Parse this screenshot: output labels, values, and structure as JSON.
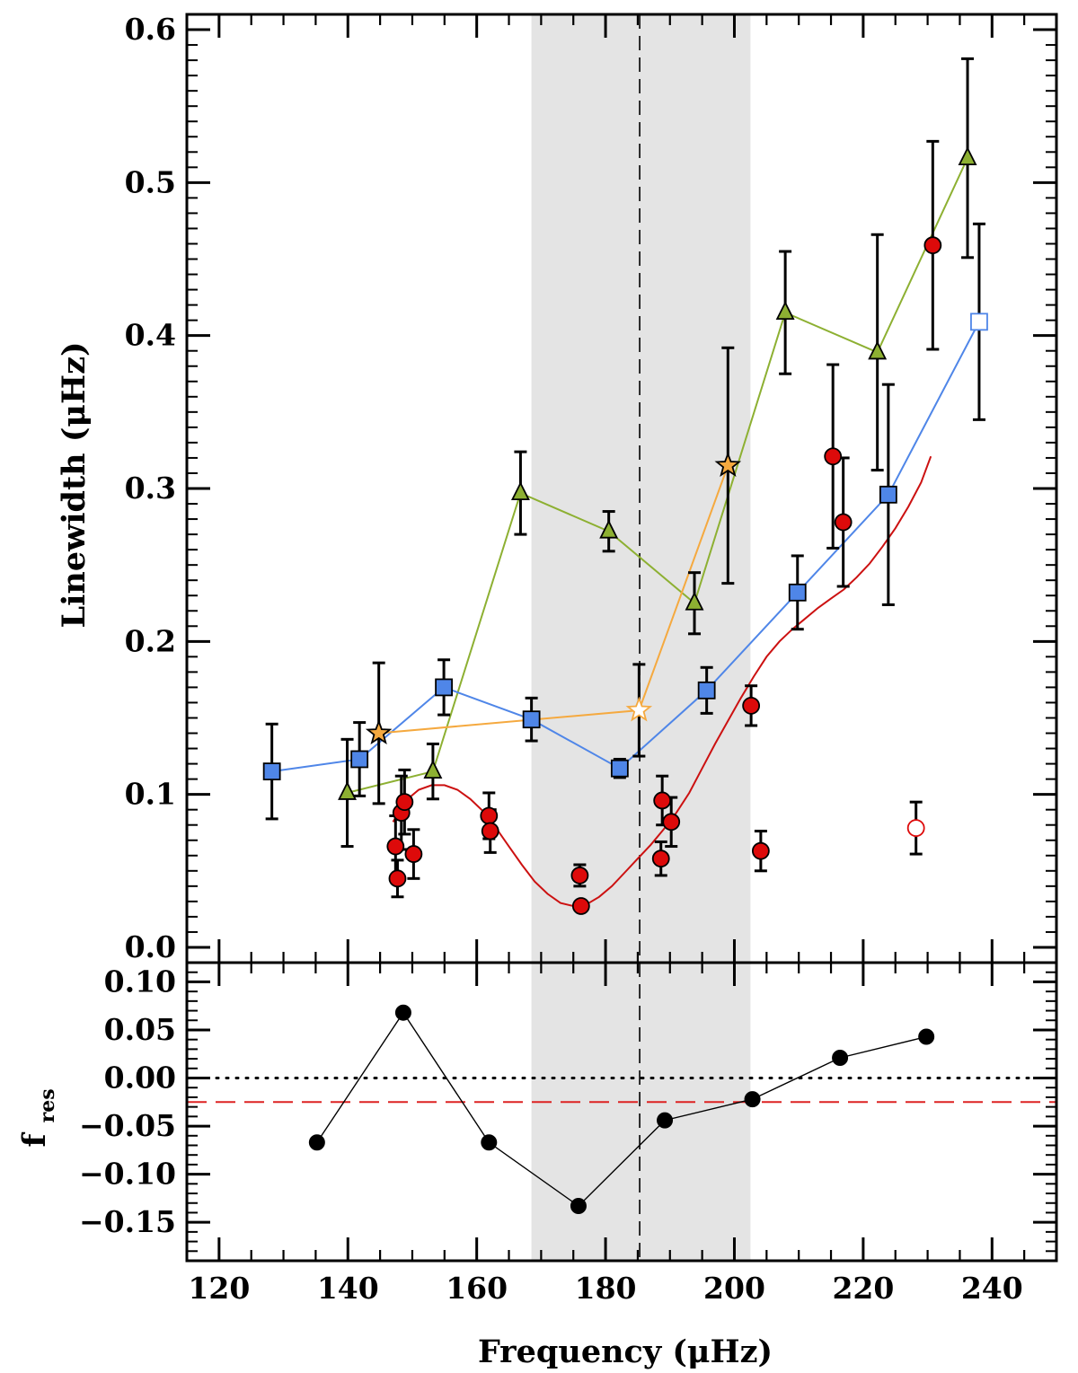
{
  "chart_data": [
    {
      "type": "scatter",
      "panel": "top",
      "xlabel": "Frequency (μHz)",
      "ylabel": "Linewidth (μHz)",
      "xlim": [
        115,
        250
      ],
      "ylim": [
        -0.01,
        0.61
      ],
      "x_ticks": [
        120,
        140,
        160,
        180,
        200,
        220,
        240
      ],
      "y_ticks": [
        0.0,
        0.1,
        0.2,
        0.3,
        0.4,
        0.5,
        0.6
      ],
      "y_tick_labels": [
        "0.0",
        "0.1",
        "0.2",
        "0.3",
        "0.4",
        "0.5",
        "0.6"
      ],
      "shaded_band_x": [
        168.5,
        202.5
      ],
      "vertical_dashed_line_x": 185.3,
      "series": [
        {
          "name": "green triangles",
          "marker": "triangle",
          "color": "#8db032",
          "line_color": "#8db032",
          "connected": true,
          "points": [
            {
              "x": 139.9,
              "y": 0.101,
              "err": 0.035
            },
            {
              "x": 153.2,
              "y": 0.115,
              "err": 0.018
            },
            {
              "x": 166.8,
              "y": 0.297,
              "err": 0.027
            },
            {
              "x": 180.5,
              "y": 0.272,
              "err": 0.013
            },
            {
              "x": 193.8,
              "y": 0.225,
              "err": 0.02
            },
            {
              "x": 207.9,
              "y": 0.415,
              "err": 0.04
            },
            {
              "x": 222.2,
              "y": 0.389,
              "err": 0.077
            },
            {
              "x": 236.2,
              "y": 0.516,
              "err": 0.065
            }
          ]
        },
        {
          "name": "blue squares",
          "marker": "square",
          "color": "#4f86e8",
          "line_color": "#4f86e8",
          "connected": true,
          "points": [
            {
              "x": 128.2,
              "y": 0.115,
              "err": 0.031
            },
            {
              "x": 141.8,
              "y": 0.123,
              "err": 0.024
            },
            {
              "x": 154.9,
              "y": 0.17,
              "err": 0.018
            },
            {
              "x": 168.5,
              "y": 0.149,
              "err": 0.014
            },
            {
              "x": 182.2,
              "y": 0.117,
              "err": 0.006
            },
            {
              "x": 195.7,
              "y": 0.168,
              "err": 0.015
            },
            {
              "x": 209.8,
              "y": 0.232,
              "err": 0.024
            },
            {
              "x": 223.9,
              "y": 0.296,
              "err": 0.072
            },
            {
              "x": 238.0,
              "y": 0.409,
              "err": 0.064,
              "open": true
            }
          ]
        },
        {
          "name": "orange stars",
          "marker": "star",
          "color": "#f5a93f",
          "line_color": "#f5a93f",
          "connected": true,
          "points": [
            {
              "x": 144.8,
              "y": 0.14,
              "err": 0.046
            },
            {
              "x": 185.2,
              "y": 0.155,
              "err": 0.03,
              "open": true
            },
            {
              "x": 199.0,
              "y": 0.315,
              "err": 0.077
            }
          ]
        },
        {
          "name": "red circles",
          "marker": "circle",
          "color": "#dd0a0a",
          "connected": false,
          "points": [
            {
              "x": 147.4,
              "y": 0.066,
              "err": 0.02
            },
            {
              "x": 147.7,
              "y": 0.045,
              "err": 0.012
            },
            {
              "x": 148.3,
              "y": 0.088,
              "err": 0.024
            },
            {
              "x": 148.8,
              "y": 0.095,
              "err": 0.021
            },
            {
              "x": 150.2,
              "y": 0.061,
              "err": 0.016
            },
            {
              "x": 161.9,
              "y": 0.086,
              "err": 0.015
            },
            {
              "x": 162.1,
              "y": 0.076,
              "err": 0.014
            },
            {
              "x": 176.0,
              "y": 0.047,
              "err": 0.007
            },
            {
              "x": 176.2,
              "y": 0.027,
              "err": 0.003
            },
            {
              "x": 188.8,
              "y": 0.096,
              "err": 0.016
            },
            {
              "x": 190.2,
              "y": 0.082,
              "err": 0.016
            },
            {
              "x": 188.6,
              "y": 0.058,
              "err": 0.011
            },
            {
              "x": 202.6,
              "y": 0.158,
              "err": 0.013
            },
            {
              "x": 204.1,
              "y": 0.063,
              "err": 0.013
            },
            {
              "x": 215.3,
              "y": 0.321,
              "err": 0.06
            },
            {
              "x": 216.9,
              "y": 0.278,
              "err": 0.042
            },
            {
              "x": 228.2,
              "y": 0.078,
              "err": 0.017,
              "open": true
            },
            {
              "x": 230.8,
              "y": 0.459,
              "err": 0.068
            }
          ]
        }
      ],
      "fit_curve": {
        "name": "red fit curve",
        "color": "#cc1111",
        "x": [
          147.0,
          149,
          151,
          153,
          155,
          157,
          159,
          161,
          163,
          165,
          167,
          169,
          171,
          173,
          175,
          177,
          179,
          181,
          183,
          185,
          187,
          189,
          191,
          193,
          195,
          197,
          199,
          201,
          203,
          205,
          207,
          209,
          211,
          213,
          215,
          217,
          219,
          221,
          223,
          225,
          227,
          229,
          230.5
        ],
        "y": [
          0.082,
          0.096,
          0.103,
          0.106,
          0.106,
          0.103,
          0.097,
          0.089,
          0.078,
          0.066,
          0.054,
          0.043,
          0.035,
          0.029,
          0.027,
          0.028,
          0.033,
          0.04,
          0.049,
          0.058,
          0.067,
          0.077,
          0.088,
          0.101,
          0.117,
          0.133,
          0.148,
          0.163,
          0.177,
          0.19,
          0.2,
          0.208,
          0.215,
          0.222,
          0.228,
          0.234,
          0.242,
          0.251,
          0.262,
          0.274,
          0.288,
          0.304,
          0.321
        ]
      }
    },
    {
      "type": "line",
      "panel": "bottom",
      "xlabel": "Frequency (μHz)",
      "ylabel": "f",
      "ylabel_subscript": "res",
      "xlim": [
        115,
        250
      ],
      "ylim": [
        -0.19,
        0.12
      ],
      "x_ticks": [
        120,
        140,
        160,
        180,
        200,
        220,
        240
      ],
      "x_tick_labels": [
        "120",
        "140",
        "160",
        "180",
        "200",
        "220",
        "240"
      ],
      "y_ticks": [
        0.1,
        0.05,
        0.0,
        -0.05,
        -0.1,
        -0.15
      ],
      "y_tick_labels": [
        "0.10",
        "0.05",
        "0.00",
        "−0.05",
        "−0.10",
        "−0.15"
      ],
      "zero_line_style": "dotted",
      "reference_line": {
        "y": -0.025,
        "color": "#dd2222",
        "style": "dashed"
      },
      "series": [
        {
          "name": "f_res",
          "marker": "circle",
          "color": "#000000",
          "x": [
            135.2,
            148.6,
            161.9,
            175.8,
            189.2,
            202.8,
            216.4,
            229.8
          ],
          "y": [
            -0.067,
            0.068,
            -0.067,
            -0.133,
            -0.044,
            -0.022,
            0.021,
            0.043
          ]
        }
      ]
    }
  ]
}
